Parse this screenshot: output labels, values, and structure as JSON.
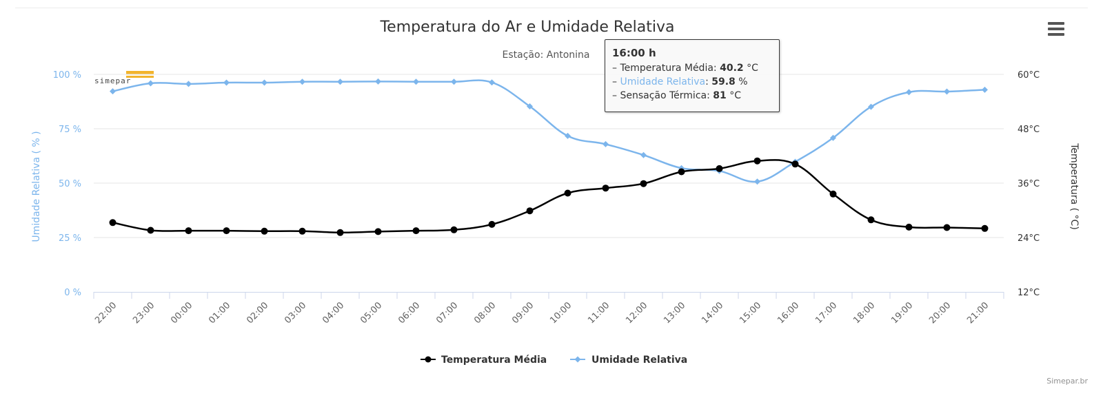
{
  "chart_data": {
    "type": "line",
    "title": "Temperatura do Ar e Umidade Relativa",
    "subtitle": "Estação: Antonina",
    "categories": [
      "22:00",
      "23:00",
      "00:00",
      "01:00",
      "02:00",
      "03:00",
      "04:00",
      "05:00",
      "06:00",
      "07:00",
      "08:00",
      "09:00",
      "10:00",
      "11:00",
      "12:00",
      "13:00",
      "14:00",
      "15:00",
      "16:00",
      "17:00",
      "18:00",
      "19:00",
      "20:00",
      "21:00"
    ],
    "y_left": {
      "label": "Umidade Relativa ( % )",
      "ticks": [
        "0 %",
        "25 %",
        "50 %",
        "75 %",
        "100 %"
      ],
      "range": [
        0,
        100
      ],
      "color": "#7cb5ec"
    },
    "y_right": {
      "label": "Temperatura ( °C)",
      "ticks": [
        "12°C",
        "24°C",
        "36°C",
        "48°C",
        "60°C"
      ],
      "range": [
        12,
        60
      ],
      "color": "#333333"
    },
    "series": [
      {
        "name": "Temperatura Média",
        "axis": "right",
        "color": "#000000",
        "marker": "circle",
        "values": [
          27.3,
          25.6,
          25.5,
          25.5,
          25.4,
          25.4,
          25.1,
          25.3,
          25.5,
          25.7,
          26.9,
          29.9,
          33.8,
          34.9,
          35.9,
          38.5,
          39.2,
          40.9,
          40.2,
          33.6,
          27.9,
          26.3,
          26.2,
          26.0
        ]
      },
      {
        "name": "Umidade Relativa",
        "axis": "left",
        "color": "#7cb5ec",
        "marker": "diamond",
        "values": [
          92.2,
          95.9,
          95.6,
          96.2,
          96.2,
          96.6,
          96.6,
          96.7,
          96.6,
          96.6,
          96.3,
          85.3,
          71.7,
          67.9,
          62.9,
          56.9,
          55.6,
          50.7,
          59.8,
          70.8,
          85.1,
          91.8,
          92.1,
          92.9
        ]
      }
    ],
    "legend": {
      "position": "bottom-center",
      "items": [
        "Temperatura Média",
        "Umidade Relativa"
      ]
    },
    "grid": true,
    "credits": "Simepar.br",
    "tooltip": {
      "header": "16:00 h",
      "rows": [
        {
          "label": "Temperatura Média",
          "value": "40.2",
          "unit": "°C"
        },
        {
          "label": "Umidade Relativa",
          "value": "59.8",
          "unit": "%"
        },
        {
          "label": "Sensação Térmica",
          "value": "81",
          "unit": "°C"
        }
      ]
    },
    "logo_text": "simepar"
  },
  "icons": {
    "menu": "hamburger-menu-icon"
  }
}
